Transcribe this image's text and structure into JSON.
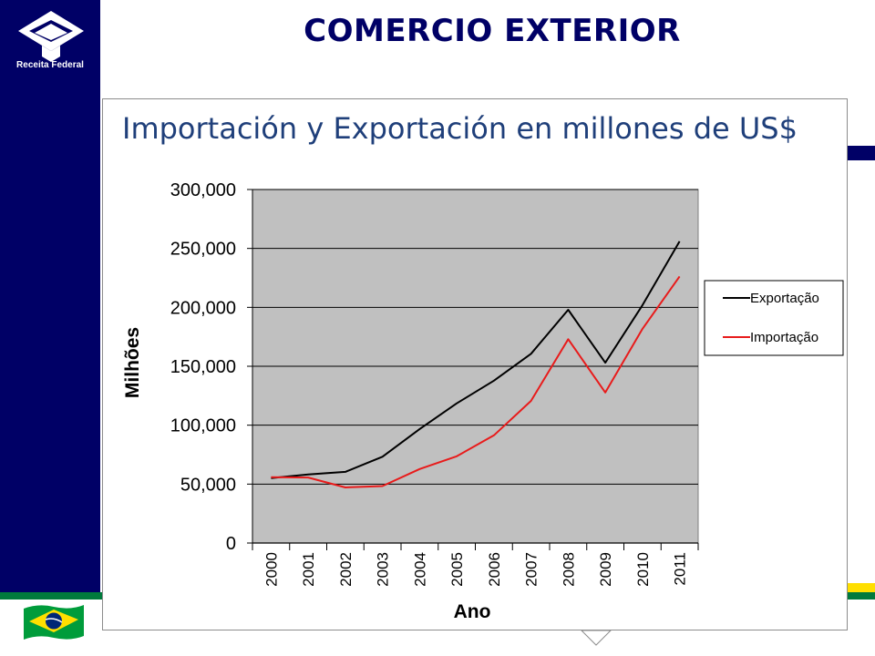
{
  "header": {
    "title": "COMERCIO EXTERIOR",
    "logo_text": "Receita Federal"
  },
  "slide": {
    "subtitle": "Importación y Exportación en millones de US$"
  },
  "colors": {
    "navy": "#000066",
    "export_line": "#000000",
    "import_line": "#e81b1b",
    "plot_bg": "#c0c0c0",
    "green": "#007a3d",
    "yellow": "#ffdf00"
  },
  "chart_data": {
    "type": "line",
    "title": "",
    "xlabel": "Ano",
    "ylabel": "Milhões",
    "x": [
      "2000",
      "2001",
      "2002",
      "2003",
      "2004",
      "2005",
      "2006",
      "2007",
      "2008",
      "2009",
      "2010",
      "2011"
    ],
    "ylim": [
      0,
      300000
    ],
    "yticks": [
      0,
      50000,
      100000,
      150000,
      200000,
      250000,
      300000
    ],
    "ytick_labels": [
      "0",
      "50,000",
      "100,000",
      "150,000",
      "200,000",
      "250,000",
      "300,000"
    ],
    "grid": true,
    "legend": "right",
    "series": [
      {
        "name": "Exportação",
        "values": [
          55100,
          58200,
          60400,
          73200,
          96700,
          118500,
          137800,
          160600,
          197900,
          153000,
          201900,
          256000
        ]
      },
      {
        "name": "Importação",
        "values": [
          55800,
          55600,
          47200,
          48300,
          62800,
          73600,
          91400,
          120600,
          173000,
          127700,
          181800,
          226200
        ]
      }
    ]
  }
}
